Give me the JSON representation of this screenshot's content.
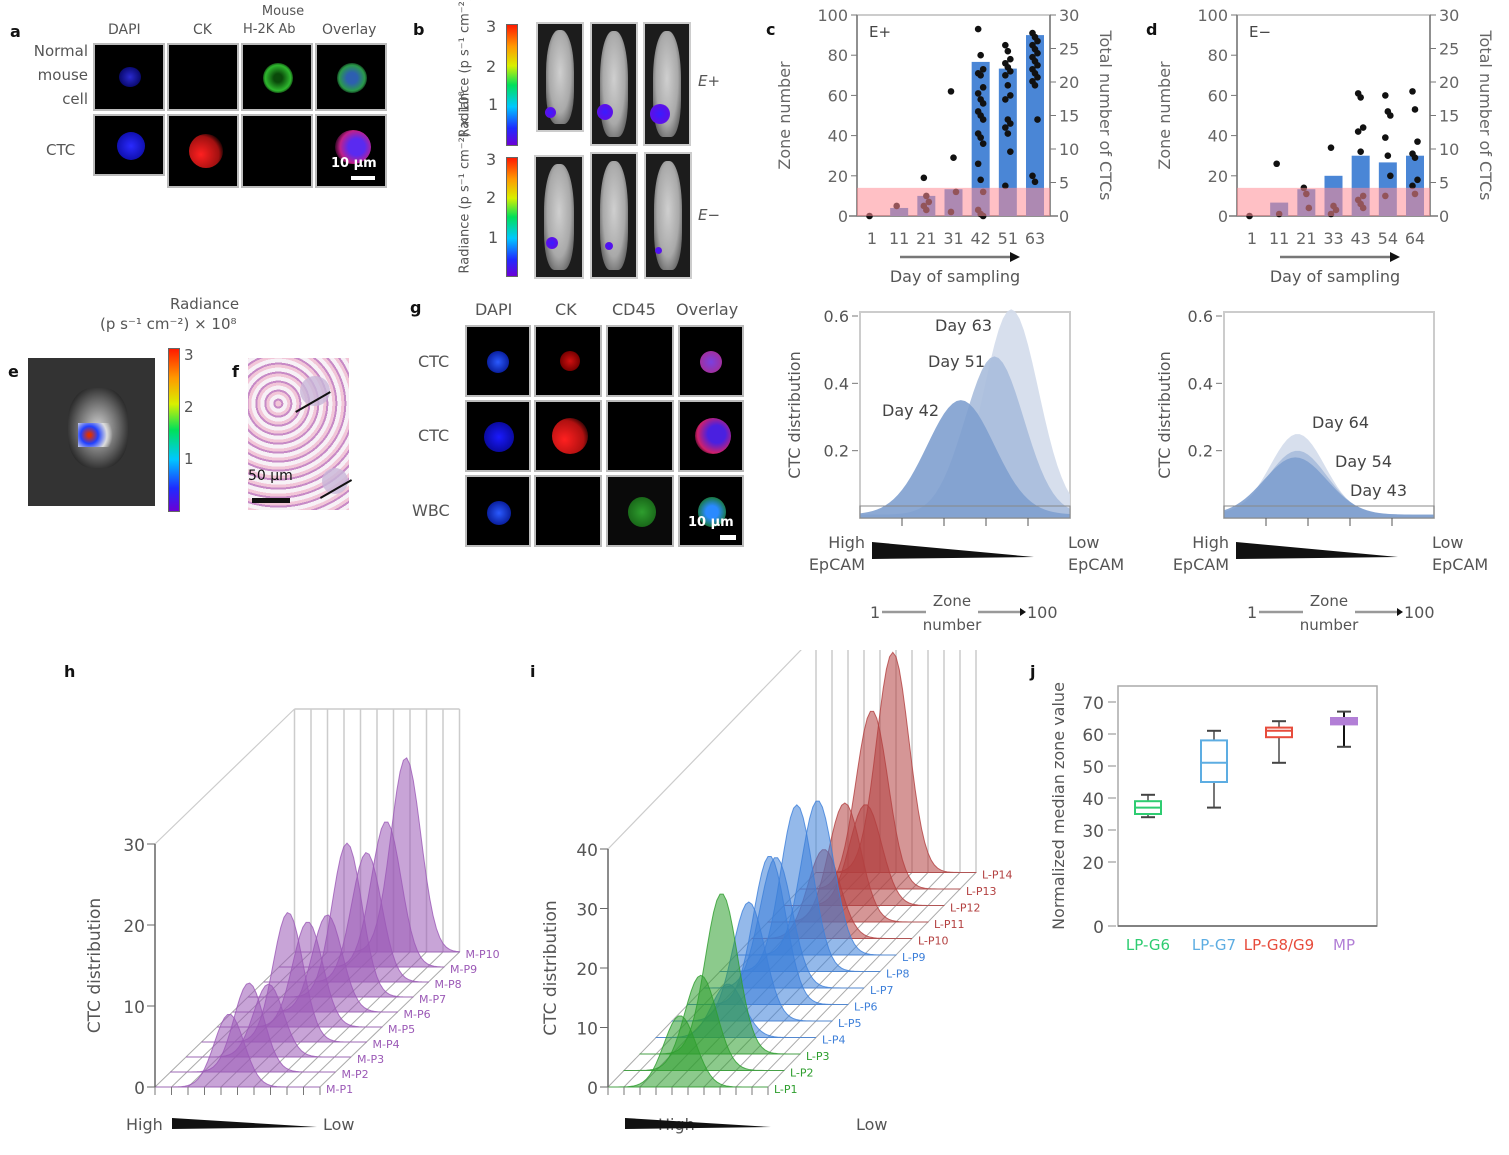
{
  "panels": {
    "a": {
      "label": "a",
      "columns": [
        "DAPI",
        "CK",
        "Mouse H-2K Ab",
        "Overlay"
      ],
      "column_line1": "Mouse",
      "column_line2": "H-2K Ab",
      "rows": [
        "Normal mouse cell",
        "CTC"
      ],
      "row1_lines": [
        "Normal",
        "mouse",
        "cell"
      ],
      "scale_bar": "10 µm"
    },
    "b": {
      "label": "b",
      "colorbar_label_top": "Radiance (p s⁻¹ cm⁻²) × 10⁸",
      "colorbar_label_bottom": "Radiance (p s⁻¹ cm⁻²) × 10⁸",
      "colorbar_ticks": [
        "3",
        "2",
        "1"
      ],
      "row_labels": [
        "E+",
        "E−"
      ]
    },
    "e": {
      "label": "e",
      "colorbar_title_line1": "Radiance",
      "colorbar_title_line2": "(p s⁻¹ cm⁻²) × 10⁸",
      "colorbar_ticks": [
        "3",
        "2",
        "1"
      ]
    },
    "f": {
      "label": "f",
      "scale_bar": "50 µm"
    },
    "g": {
      "label": "g",
      "columns": [
        "DAPI",
        "CK",
        "CD45",
        "Overlay"
      ],
      "rows": [
        "CTC",
        "CTC",
        "WBC"
      ],
      "scale_bar": "10 µm"
    },
    "h": {
      "label": "h"
    },
    "i": {
      "label": "i"
    },
    "j": {
      "label": "j"
    }
  },
  "chart_data": [
    {
      "id": "c",
      "type": "bar",
      "title": "E+",
      "xlabel": "Day of sampling",
      "ylabel": "Zone number",
      "y2label": "Total number of CTCs",
      "categories": [
        "1",
        "11",
        "21",
        "31",
        "42",
        "51",
        "63"
      ],
      "ylim": [
        0,
        100
      ],
      "y2lim": [
        0,
        30
      ],
      "yticks": [
        "0",
        "20",
        "40",
        "60",
        "80",
        "100"
      ],
      "y2ticks": [
        "0",
        "5",
        "10",
        "15",
        "20",
        "25",
        "30"
      ],
      "threshold_band": [
        0,
        14
      ],
      "series": [
        {
          "name": "Total number of CTCs (bars)",
          "axis": "y2",
          "values": [
            0,
            1.2,
            3,
            4,
            23,
            22,
            27
          ]
        },
        {
          "name": "Zone number (dots)",
          "axis": "y",
          "points": [
            [
              0,
              [
                0
              ]
            ],
            [
              1,
              [
                5
              ]
            ],
            [
              2,
              [
                19,
                10,
                7,
                5,
                3
              ]
            ],
            [
              3,
              [
                62,
                29,
                12,
                2
              ]
            ],
            [
              4,
              [
                93,
                80,
                73,
                71,
                70,
                64,
                61,
                58,
                56,
                52,
                50,
                48,
                41,
                39,
                36,
                26,
                18,
                12,
                3,
                1,
                0
              ]
            ],
            [
              5,
              [
                85,
                82,
                78,
                76,
                74,
                72,
                70,
                65,
                60,
                58,
                48,
                46,
                44,
                41,
                32,
                15
              ]
            ],
            [
              6,
              [
                91,
                89,
                87,
                85,
                83,
                81,
                79,
                77,
                75,
                73,
                71,
                69,
                67,
                65,
                48,
                20,
                17
              ]
            ]
          ]
        }
      ]
    },
    {
      "id": "d",
      "type": "bar",
      "title": "E−",
      "xlabel": "Day of sampling",
      "ylabel": "Zone number",
      "y2label": "Total number of CTCs",
      "categories": [
        "1",
        "11",
        "21",
        "33",
        "43",
        "54",
        "64"
      ],
      "ylim": [
        0,
        100
      ],
      "y2lim": [
        0,
        30
      ],
      "yticks": [
        "0",
        "20",
        "40",
        "60",
        "80",
        "100"
      ],
      "y2ticks": [
        "0",
        "5",
        "10",
        "15",
        "20",
        "25",
        "30"
      ],
      "threshold_band": [
        0,
        14
      ],
      "series": [
        {
          "name": "Total number of CTCs (bars)",
          "axis": "y2",
          "values": [
            0,
            2,
            4,
            6,
            9,
            8,
            9
          ]
        },
        {
          "name": "Zone number (dots)",
          "axis": "y",
          "points": [
            [
              0,
              [
                0
              ]
            ],
            [
              1,
              [
                26,
                1
              ]
            ],
            [
              2,
              [
                14,
                11,
                4
              ]
            ],
            [
              3,
              [
                34,
                5,
                3,
                1
              ]
            ],
            [
              4,
              [
                61,
                59,
                44,
                42,
                32,
                10,
                8,
                6,
                4
              ]
            ],
            [
              5,
              [
                60,
                52,
                50,
                39,
                30,
                20,
                10
              ]
            ],
            [
              6,
              [
                62,
                53,
                37,
                31,
                29,
                18,
                15,
                11
              ]
            ]
          ]
        }
      ]
    },
    {
      "id": "c-lower",
      "type": "area",
      "ylabel": "CTC distribution",
      "ylim": [
        0,
        0.6
      ],
      "yticks": [
        "0.2",
        "0.4",
        "0.6"
      ],
      "x_low_label": [
        "High",
        "EpCAM"
      ],
      "x_high_label": [
        "Low",
        "EpCAM"
      ],
      "zone_axis": {
        "start": "1",
        "label_line1": "Zone",
        "label_line2": "number",
        "end": "100"
      },
      "series": [
        {
          "name": "Day 63",
          "peak": 0.61,
          "center": 72,
          "width": 13,
          "color": "#d3dceb"
        },
        {
          "name": "Day 51",
          "peak": 0.47,
          "center": 64,
          "width": 14,
          "color": "#a8bcdb"
        },
        {
          "name": "Day 42",
          "peak": 0.34,
          "center": 48,
          "width": 16,
          "color": "#7fa0cf"
        }
      ]
    },
    {
      "id": "d-lower",
      "type": "area",
      "ylabel": "CTC distribution",
      "ylim": [
        0,
        0.6
      ],
      "yticks": [
        "0.2",
        "0.4",
        "0.6"
      ],
      "x_low_label": [
        "High",
        "EpCAM"
      ],
      "x_high_label": [
        "Low",
        "EpCAM"
      ],
      "zone_axis": {
        "start": "1",
        "label_line1": "Zone",
        "label_line2": "number",
        "end": "100"
      },
      "series": [
        {
          "name": "Day 64",
          "peak": 0.24,
          "center": 35,
          "width": 13,
          "color": "#d3dceb"
        },
        {
          "name": "Day 54",
          "peak": 0.19,
          "center": 35,
          "width": 14,
          "color": "#a8bcdb"
        },
        {
          "name": "Day 43",
          "peak": 0.17,
          "center": 34,
          "width": 15,
          "color": "#7fa0cf"
        }
      ]
    },
    {
      "id": "h",
      "type": "area",
      "subtype": "3d-waterfall",
      "ylabel": "CTC distribution",
      "ylim": [
        0,
        30
      ],
      "yticks": [
        "0",
        "10",
        "20",
        "30"
      ],
      "x_low_label": "High",
      "x_high_label": "Low",
      "series": [
        {
          "name": "M-P1",
          "peak": 9,
          "color": "#9b59b6"
        },
        {
          "name": "M-P2",
          "peak": 11,
          "color": "#9b59b6"
        },
        {
          "name": "M-P3",
          "peak": 9,
          "color": "#9b59b6"
        },
        {
          "name": "M-P4",
          "peak": 16,
          "color": "#9b59b6"
        },
        {
          "name": "M-P5",
          "peak": 13,
          "color": "#9b59b6"
        },
        {
          "name": "M-P6",
          "peak": 12,
          "color": "#9b59b6"
        },
        {
          "name": "M-P7",
          "peak": 19,
          "color": "#9b59b6"
        },
        {
          "name": "M-P8",
          "peak": 16,
          "color": "#9b59b6"
        },
        {
          "name": "M-P9",
          "peak": 18,
          "color": "#9b59b6"
        },
        {
          "name": "M-P10",
          "peak": 24,
          "color": "#9b59b6"
        }
      ]
    },
    {
      "id": "i",
      "type": "area",
      "subtype": "3d-waterfall",
      "ylabel": "CTC distribution",
      "ylim": [
        0,
        40
      ],
      "yticks": [
        "0",
        "10",
        "20",
        "30",
        "40"
      ],
      "x_low_label": "High",
      "x_high_label": "Low",
      "series": [
        {
          "name": "L-P1",
          "peak": 12,
          "color": "#2e9e2e"
        },
        {
          "name": "L-P2",
          "peak": 16,
          "color": "#2e9e2e"
        },
        {
          "name": "L-P3",
          "peak": 27,
          "color": "#2e9e2e"
        },
        {
          "name": "L-P4",
          "peak": 9,
          "color": "#3d7fd9"
        },
        {
          "name": "L-P5",
          "peak": 20,
          "color": "#3d7fd9"
        },
        {
          "name": "L-P6",
          "peak": 25,
          "color": "#3d7fd9"
        },
        {
          "name": "L-P7",
          "peak": 22,
          "color": "#3d7fd9"
        },
        {
          "name": "L-P8",
          "peak": 28,
          "color": "#3d7fd9"
        },
        {
          "name": "L-P9",
          "peak": 26,
          "color": "#3d7fd9"
        },
        {
          "name": "L-P10",
          "peak": 15,
          "color": "#b34040"
        },
        {
          "name": "L-P11",
          "peak": 20,
          "color": "#b34040"
        },
        {
          "name": "L-P12",
          "peak": 17,
          "color": "#b34040"
        },
        {
          "name": "L-P13",
          "peak": 30,
          "color": "#b34040"
        },
        {
          "name": "L-P14",
          "peak": 37,
          "color": "#b34040"
        }
      ]
    },
    {
      "id": "j",
      "type": "box",
      "ylabel": "Normalized median zone value",
      "ylim": [
        0,
        75
      ],
      "yticks": [
        "0",
        "20",
        "30",
        "40",
        "50",
        "60",
        "70"
      ],
      "ytick_values": [
        0,
        20,
        30,
        40,
        50,
        60,
        70
      ],
      "categories": [
        "LP-G6",
        "LP-G7",
        "LP-G8/G9",
        "MP"
      ],
      "colors": [
        "#2ecc71",
        "#5dade2",
        "#e74c3c",
        "#b27fd6"
      ],
      "boxes": [
        {
          "name": "LP-G6",
          "min": 34,
          "q1": 35,
          "median": 37,
          "q3": 39,
          "max": 41
        },
        {
          "name": "LP-G7",
          "min": 37,
          "q1": 45,
          "median": 51,
          "q3": 58,
          "max": 61
        },
        {
          "name": "LP-G8/G9",
          "min": 51,
          "q1": 59,
          "median": 61,
          "q3": 62,
          "max": 64
        },
        {
          "name": "MP",
          "min": 56,
          "q1": 63,
          "median": 64,
          "q3": 65,
          "max": 67
        }
      ]
    }
  ]
}
